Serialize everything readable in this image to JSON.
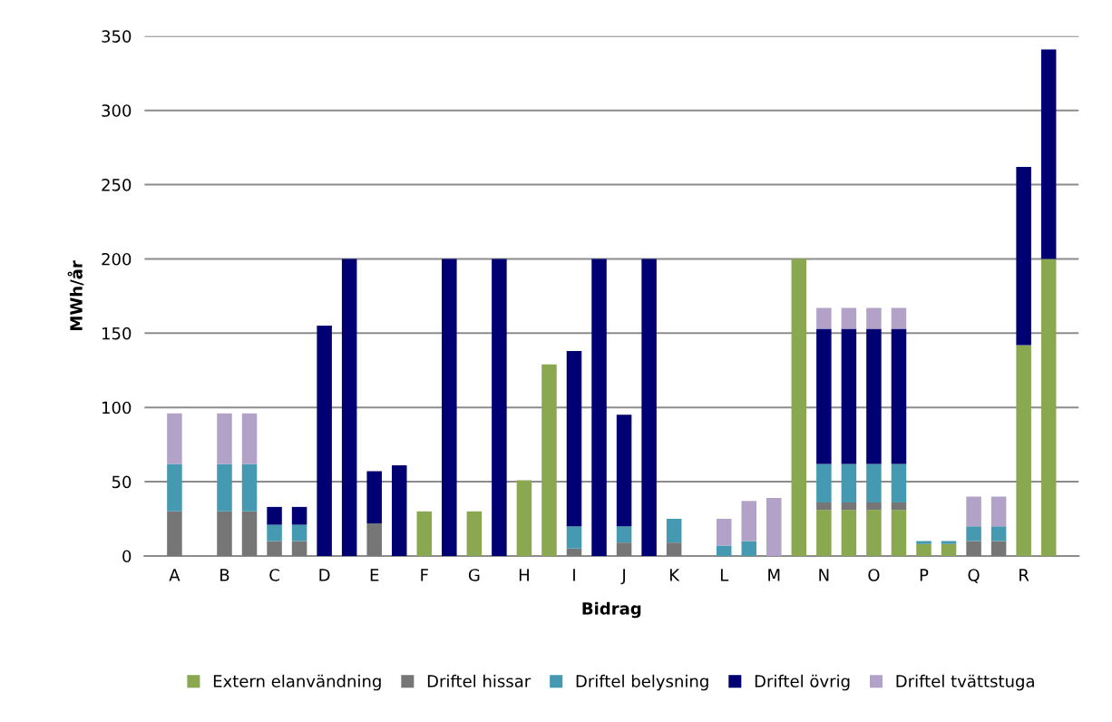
{
  "chart_data": {
    "type": "bar",
    "stacked": true,
    "xlabel": "Bidrag",
    "ylabel": "MWh/år",
    "categories": [
      "A",
      null,
      "B",
      null,
      "C",
      null,
      "D",
      null,
      "E",
      null,
      "F",
      null,
      "G",
      null,
      "H",
      null,
      "I",
      null,
      "J",
      null,
      "K",
      null,
      "L",
      null,
      "M",
      null,
      "N",
      null,
      "O",
      null,
      "P",
      null,
      "Q",
      null,
      "R",
      null
    ],
    "series": [
      {
        "name": "Extern elanvändning",
        "color": "#8aa84f",
        "values": [
          0,
          0,
          0,
          0,
          0,
          0,
          0,
          0,
          0,
          0,
          30,
          0,
          30,
          0,
          51,
          129,
          0,
          0,
          0,
          0,
          0,
          0,
          0,
          0,
          0,
          200,
          31,
          31,
          31,
          31,
          8,
          8,
          0,
          0,
          142,
          200
        ]
      },
      {
        "name": "Driftel hissar",
        "color": "#767676",
        "values": [
          30,
          0,
          30,
          30,
          10,
          10,
          0,
          0,
          22,
          0,
          0,
          0,
          0,
          0,
          0,
          0,
          5,
          0,
          9,
          0,
          9,
          0,
          0,
          0,
          0,
          0,
          5,
          5,
          5,
          5,
          0,
          0,
          10,
          10,
          0,
          0
        ]
      },
      {
        "name": "Driftel belysning",
        "color": "#4599b0",
        "values": [
          32,
          0,
          32,
          32,
          11,
          11,
          0,
          0,
          0,
          0,
          0,
          0,
          0,
          0,
          0,
          0,
          15,
          0,
          11,
          0,
          16,
          0,
          7,
          10,
          0,
          0,
          26,
          26,
          26,
          26,
          2,
          2,
          10,
          10,
          0,
          0
        ]
      },
      {
        "name": "Driftel övrig",
        "color": "#000072",
        "values": [
          0,
          0,
          0,
          0,
          12,
          12,
          155,
          200,
          35,
          61,
          0,
          200,
          0,
          200,
          0,
          0,
          118,
          200,
          75,
          200,
          0,
          0,
          0,
          0,
          0,
          0,
          91,
          91,
          91,
          91,
          0,
          0,
          0,
          0,
          120,
          141
        ]
      },
      {
        "name": "Driftel tvättstuga",
        "color": "#b3a2c7",
        "values": [
          34,
          0,
          34,
          34,
          0,
          0,
          0,
          0,
          0,
          0,
          0,
          0,
          0,
          0,
          0,
          0,
          0,
          0,
          0,
          0,
          0,
          0,
          18,
          27,
          39,
          0,
          14,
          14,
          14,
          14,
          0,
          0,
          20,
          20,
          0,
          0
        ]
      }
    ],
    "ylim": [
      0,
      350
    ],
    "yticks": [
      0,
      50,
      100,
      150,
      200,
      250,
      300,
      350
    ],
    "grid": "y",
    "legend": "bottom"
  }
}
